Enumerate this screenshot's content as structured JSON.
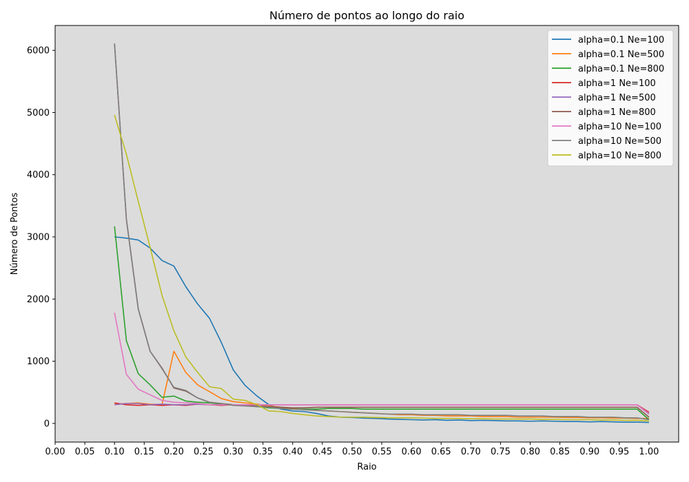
{
  "chart_data": {
    "type": "line",
    "title": "Número de pontos ao longo do raio",
    "xlabel": "Raio",
    "ylabel": "Número de Pontos",
    "xlim": [
      0.0,
      1.05
    ],
    "ylim": [
      -300,
      6400
    ],
    "x_ticks": [
      "0.00",
      "0.05",
      "0.10",
      "0.15",
      "0.20",
      "0.25",
      "0.30",
      "0.35",
      "0.40",
      "0.45",
      "0.50",
      "0.55",
      "0.60",
      "0.65",
      "0.70",
      "0.75",
      "0.80",
      "0.85",
      "0.90",
      "0.95",
      "1.00"
    ],
    "y_ticks": [
      "0",
      "1000",
      "2000",
      "3000",
      "4000",
      "5000",
      "6000"
    ],
    "background": "#dcdcdc",
    "grid": false,
    "legend_position": "top-right",
    "x": [
      0.1,
      0.12,
      0.14,
      0.16,
      0.18,
      0.2,
      0.22,
      0.24,
      0.26,
      0.28,
      0.3,
      0.32,
      0.34,
      0.36,
      0.38,
      0.4,
      0.42,
      0.44,
      0.46,
      0.48,
      0.5,
      0.52,
      0.54,
      0.56,
      0.58,
      0.6,
      0.62,
      0.64,
      0.66,
      0.68,
      0.7,
      0.72,
      0.74,
      0.76,
      0.78,
      0.8,
      0.82,
      0.84,
      0.86,
      0.88,
      0.9,
      0.92,
      0.94,
      0.96,
      0.98,
      1.0
    ],
    "series": [
      {
        "name": "alpha=0.1 Ne=100",
        "color": "#1f77b4",
        "values": [
          3000,
          2980,
          2950,
          2820,
          2620,
          2530,
          2200,
          1920,
          1690,
          1300,
          860,
          610,
          440,
          300,
          230,
          200,
          190,
          160,
          120,
          100,
          95,
          85,
          80,
          70,
          65,
          60,
          55,
          60,
          50,
          55,
          45,
          50,
          45,
          40,
          40,
          35,
          40,
          35,
          30,
          30,
          25,
          30,
          25,
          20,
          20,
          15
        ]
      },
      {
        "name": "alpha=0.1 Ne=500",
        "color": "#ff7f0e",
        "values": [
          310,
          320,
          330,
          310,
          300,
          1160,
          820,
          620,
          510,
          400,
          350,
          330,
          310,
          280,
          260,
          240,
          220,
          210,
          200,
          190,
          180,
          170,
          160,
          150,
          140,
          140,
          130,
          130,
          120,
          120,
          120,
          110,
          110,
          110,
          100,
          100,
          100,
          100,
          95,
          95,
          90,
          90,
          85,
          85,
          80,
          80
        ]
      },
      {
        "name": "alpha=0.1 Ne=800",
        "color": "#2ca02c",
        "values": [
          3170,
          1330,
          800,
          620,
          420,
          440,
          360,
          340,
          330,
          310,
          300,
          290,
          270,
          250,
          240,
          230,
          230,
          230,
          240,
          240,
          240,
          230,
          230,
          230,
          230,
          230,
          230,
          230,
          230,
          230,
          230,
          230,
          230,
          230,
          230,
          230,
          230,
          230,
          230,
          230,
          230,
          230,
          230,
          230,
          230,
          60
        ]
      },
      {
        "name": "alpha=1 Ne=100",
        "color": "#d62728",
        "values": [
          330,
          300,
          290,
          300,
          290,
          300,
          290,
          310,
          300,
          290,
          300,
          300,
          300,
          300,
          300,
          300,
          300,
          300,
          300,
          300,
          300,
          300,
          300,
          300,
          300,
          300,
          300,
          300,
          300,
          300,
          300,
          300,
          300,
          300,
          300,
          300,
          300,
          300,
          300,
          300,
          300,
          300,
          300,
          300,
          300,
          180
        ]
      },
      {
        "name": "alpha=1 Ne=500",
        "color": "#9467bd",
        "values": [
          300,
          320,
          320,
          300,
          310,
          300,
          300,
          310,
          300,
          300,
          300,
          300,
          300,
          300,
          300,
          300,
          300,
          300,
          300,
          300,
          300,
          300,
          300,
          300,
          300,
          300,
          300,
          300,
          300,
          300,
          300,
          300,
          300,
          300,
          300,
          300,
          300,
          300,
          300,
          300,
          300,
          300,
          300,
          300,
          300,
          150
        ]
      },
      {
        "name": "alpha=1 Ne=800",
        "color": "#8c564b",
        "values": [
          6110,
          3280,
          1840,
          1160,
          890,
          570,
          520,
          410,
          340,
          320,
          300,
          290,
          280,
          270,
          260,
          250,
          250,
          260,
          260,
          260,
          260,
          260,
          260,
          260,
          260,
          260,
          260,
          260,
          260,
          260,
          260,
          260,
          260,
          260,
          260,
          260,
          260,
          260,
          260,
          260,
          260,
          260,
          260,
          260,
          260,
          100
        ]
      },
      {
        "name": "alpha=10 Ne=100",
        "color": "#e377c2",
        "values": [
          1780,
          790,
          550,
          460,
          370,
          340,
          330,
          320,
          300,
          300,
          300,
          300,
          300,
          300,
          300,
          300,
          300,
          300,
          300,
          300,
          300,
          300,
          300,
          300,
          300,
          300,
          300,
          300,
          300,
          300,
          300,
          300,
          300,
          300,
          300,
          300,
          300,
          300,
          300,
          300,
          300,
          300,
          300,
          300,
          300,
          160
        ]
      },
      {
        "name": "alpha=10 Ne=500",
        "color": "#7f7f7f",
        "values": [
          6110,
          3290,
          1840,
          1160,
          880,
          580,
          530,
          410,
          340,
          320,
          290,
          280,
          270,
          260,
          240,
          230,
          220,
          210,
          200,
          190,
          180,
          170,
          160,
          150,
          150,
          150,
          140,
          140,
          140,
          140,
          130,
          130,
          130,
          130,
          120,
          120,
          120,
          110,
          110,
          110,
          100,
          100,
          100,
          90,
          90,
          60
        ]
      },
      {
        "name": "alpha=10 Ne=800",
        "color": "#bcbd22",
        "values": [
          4960,
          4330,
          3570,
          2830,
          2060,
          1490,
          1070,
          820,
          590,
          560,
          390,
          370,
          300,
          200,
          190,
          160,
          140,
          120,
          110,
          100,
          100,
          100,
          95,
          90,
          90,
          90,
          85,
          80,
          80,
          80,
          75,
          75,
          70,
          70,
          70,
          70,
          65,
          65,
          60,
          60,
          60,
          55,
          55,
          50,
          50,
          40
        ]
      }
    ]
  }
}
